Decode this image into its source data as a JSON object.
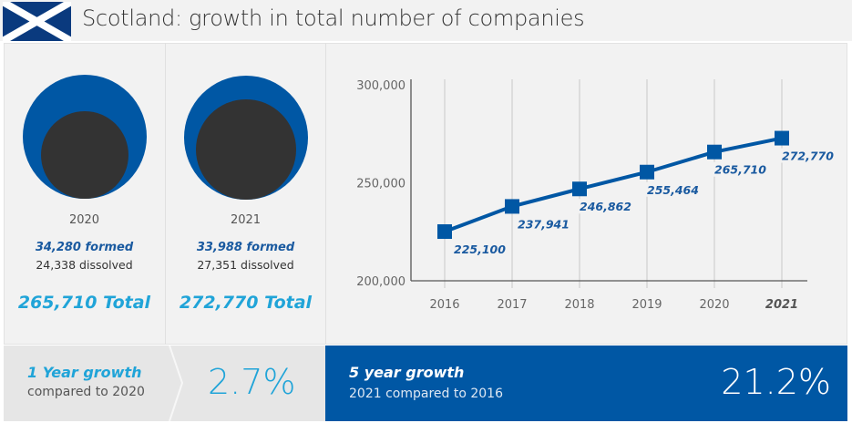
{
  "header": {
    "title": "Scotland: growth in total number of companies",
    "flag_icon": "scotland-flag-icon",
    "colors": {
      "flag_blue": "#0a3a7e",
      "flag_white": "#ffffff"
    }
  },
  "years": [
    {
      "year": "2020",
      "formed": "34,280 formed",
      "dissolved": "24,338 dissolved",
      "total": "265,710 Total",
      "formed_value": 34280,
      "dissolved_value": 24338
    },
    {
      "year": "2021",
      "formed": "33,988 formed",
      "dissolved": "27,351 dissolved",
      "total": "272,770 Total",
      "formed_value": 33988,
      "dissolved_value": 27351
    }
  ],
  "growth": {
    "one_year": {
      "label": "1 Year growth",
      "sub": "compared to 2020",
      "value": "2.7%"
    },
    "five_year": {
      "label": "5 year growth",
      "sub": "2021 compared to 2016",
      "value": "21.2%"
    }
  },
  "colors": {
    "blue": "#0057a4",
    "dark": "#333333",
    "light_blue": "#20a4d8",
    "bg": "#f2f2f2"
  },
  "chart_data": {
    "type": "line",
    "title": "",
    "x": [
      "2016",
      "2017",
      "2018",
      "2019",
      "2020",
      "2021"
    ],
    "series": [
      {
        "name": "Total companies",
        "values": [
          225100,
          237941,
          246862,
          255464,
          265710,
          272770
        ],
        "labels": [
          "225,100",
          "237,941",
          "246,862",
          "255,464",
          "265,710",
          "272,770"
        ]
      }
    ],
    "yticks": [
      200000,
      250000,
      300000
    ],
    "ytick_labels": [
      "200,000",
      "250,000",
      "300,000"
    ],
    "ylim": [
      200000,
      300000
    ],
    "xlabel": "",
    "ylabel": "",
    "grid": "vertical",
    "legend": "none"
  }
}
